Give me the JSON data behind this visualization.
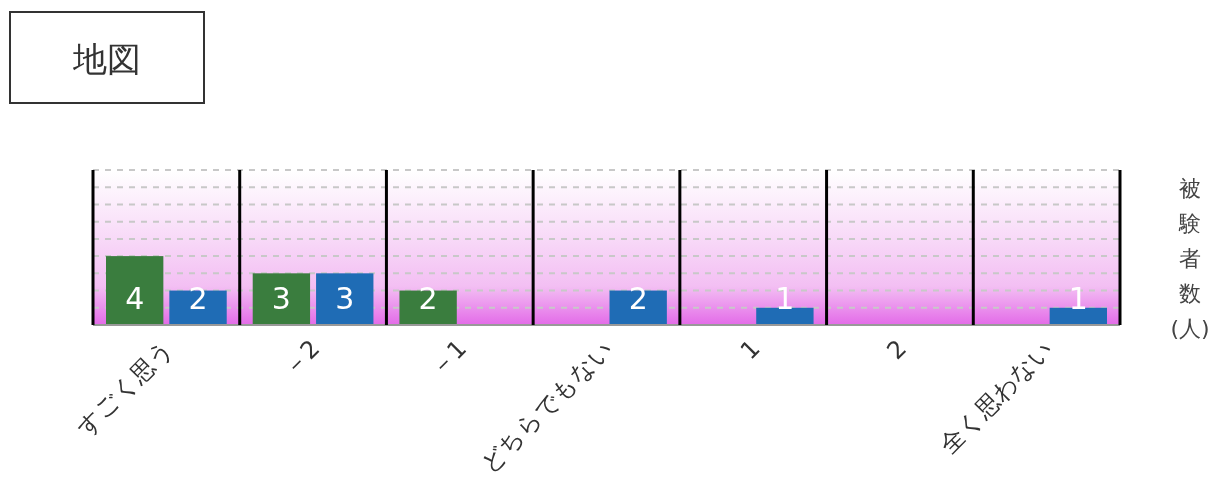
{
  "chart_data": {
    "type": "bar",
    "title": "地図",
    "ylabel": "被験者数(人)",
    "categories": [
      "すごく思う",
      "－2",
      "－1",
      "どちらでもない",
      "1",
      "2",
      "全く思わない"
    ],
    "series": [
      {
        "color": "#3a7d3e",
        "values": [
          4,
          3,
          2,
          0,
          0,
          0,
          0
        ],
        "value_labels": [
          "4",
          "3",
          "2",
          null,
          null,
          null,
          null
        ]
      },
      {
        "color": "#1f6cb5",
        "values": [
          2,
          3,
          0,
          2,
          1,
          0,
          1
        ],
        "value_labels": [
          "2",
          "3",
          null,
          "2",
          "1",
          null,
          "1"
        ]
      }
    ],
    "ylim": [
      0,
      9
    ],
    "yticks": [
      {
        "value": 1,
        "label": null
      },
      {
        "value": 2,
        "label": null
      },
      {
        "value": 3,
        "label": null
      },
      {
        "value": 4,
        "label": null
      },
      {
        "value": 5,
        "label": null
      },
      {
        "value": 6,
        "label": null
      },
      {
        "value": 7,
        "label": null
      },
      {
        "value": 8,
        "label": null
      },
      {
        "value": 9,
        "label": null
      }
    ],
    "grid": "y",
    "tick_labels": "x"
  }
}
